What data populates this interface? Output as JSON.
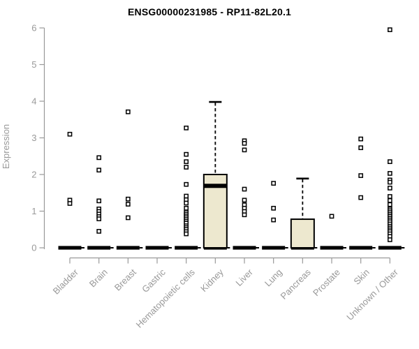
{
  "title": "ENSG00000231985 - RP11-82L20.1",
  "colors": {
    "axis": "#999999",
    "tick_label": "#999999",
    "title_text": "#000000",
    "box_fill": "#EDE8CF",
    "box_stroke": "#000000",
    "outlier_fill": "#ffffff",
    "outlier_stroke": "#000000",
    "zero_bar": "#000000"
  },
  "chart_data": {
    "type": "boxplot",
    "title": "ENSG00000231985 - RP11-82L20.1",
    "xlabel": "",
    "ylabel": "Expression",
    "ylim": [
      0,
      6
    ],
    "yticks": [
      0,
      1,
      2,
      3,
      4,
      5,
      6
    ],
    "grid": false,
    "legend": "none",
    "categories": [
      "Bladder",
      "Brain",
      "Breast",
      "Gastric",
      "Hematopoietic cells",
      "Kidney",
      "Liver",
      "Lung",
      "Pancreas",
      "Prostate",
      "Skin",
      "Unknown / Other"
    ],
    "series": [
      {
        "name": "Bladder",
        "q1": 0,
        "median": 0,
        "q3": 0,
        "whisker_low": 0,
        "whisker_high": 0,
        "outliers": [
          3.1,
          1.3,
          1.21
        ]
      },
      {
        "name": "Brain",
        "q1": 0,
        "median": 0,
        "q3": 0,
        "whisker_low": 0,
        "whisker_high": 0,
        "outliers": [
          2.46,
          2.12,
          1.28,
          1.06,
          0.99,
          0.92,
          0.85,
          0.79,
          0.45
        ]
      },
      {
        "name": "Breast",
        "q1": 0,
        "median": 0,
        "q3": 0,
        "whisker_low": 0,
        "whisker_high": 0,
        "outliers": [
          3.71,
          1.33,
          1.19,
          0.82
        ]
      },
      {
        "name": "Gastric",
        "q1": 0,
        "median": 0,
        "q3": 0,
        "whisker_low": 0,
        "whisker_high": 0,
        "outliers": []
      },
      {
        "name": "Hematopoietic cells",
        "q1": 0,
        "median": 0,
        "q3": 0,
        "whisker_low": 0,
        "whisker_high": 0,
        "outliers": [
          3.27,
          2.55,
          2.35,
          2.2,
          1.73,
          1.41,
          1.31,
          1.22,
          1.08,
          0.97,
          0.92,
          0.87,
          0.82,
          0.77,
          0.72,
          0.67,
          0.6,
          0.55,
          0.5,
          0.44,
          0.38
        ]
      },
      {
        "name": "Kidney",
        "q1": 0,
        "median": 1.69,
        "q3": 2.0,
        "whisker_low": 0,
        "whisker_high": 3.98,
        "outliers": []
      },
      {
        "name": "Liver",
        "q1": 0,
        "median": 0,
        "q3": 0,
        "whisker_low": 0,
        "whisker_high": 0,
        "outliers": [
          2.92,
          2.85,
          2.67,
          1.6,
          1.3,
          1.17,
          1.08,
          0.99,
          0.9
        ]
      },
      {
        "name": "Lung",
        "q1": 0,
        "median": 0,
        "q3": 0,
        "whisker_low": 0,
        "whisker_high": 0,
        "outliers": [
          1.76,
          1.08,
          0.76
        ]
      },
      {
        "name": "Pancreas",
        "q1": 0,
        "median": 0,
        "q3": 0.78,
        "whisker_low": 0,
        "whisker_high": 1.89,
        "outliers": []
      },
      {
        "name": "Prostate",
        "q1": 0,
        "median": 0,
        "q3": 0,
        "whisker_low": 0,
        "whisker_high": 0,
        "outliers": [
          0.86
        ]
      },
      {
        "name": "Skin",
        "q1": 0,
        "median": 0,
        "q3": 0,
        "whisker_low": 0,
        "whisker_high": 0,
        "outliers": [
          2.97,
          2.73,
          1.97,
          1.37
        ]
      },
      {
        "name": "Unknown / Other",
        "q1": 0,
        "median": 0,
        "q3": 0,
        "whisker_low": 0,
        "whisker_high": 0,
        "outliers": [
          5.95,
          2.35,
          2.03,
          1.85,
          1.79,
          1.63,
          1.4,
          1.29,
          1.18,
          1.06,
          1.01,
          0.96,
          0.91,
          0.86,
          0.81,
          0.76,
          0.71,
          0.65,
          0.59,
          0.54,
          0.49,
          0.44,
          0.38,
          0.31,
          0.22
        ]
      }
    ]
  }
}
